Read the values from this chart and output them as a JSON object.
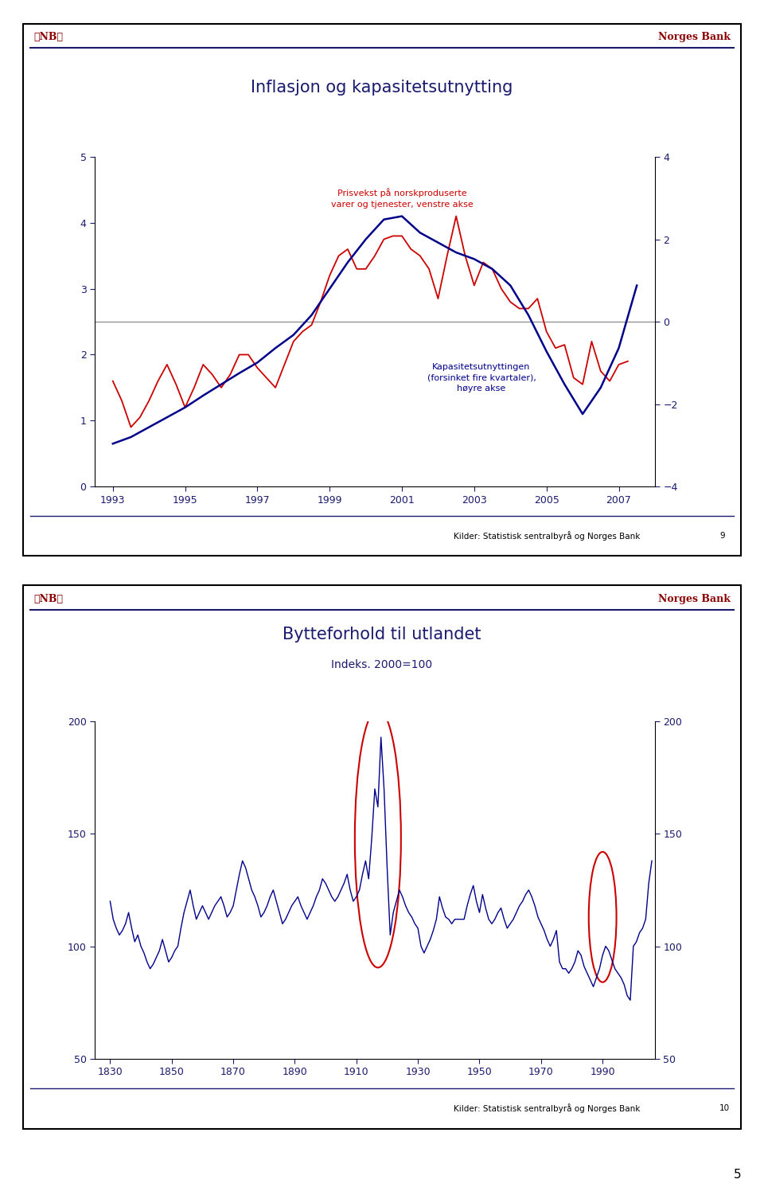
{
  "chart1": {
    "title": "Inflasjon og kapasitetsutnytting",
    "header_left": "❅NB❅",
    "header_right": "Norges Bank",
    "footer": "Kilder: Statistisk sentralbyrå og Norges Bank",
    "footer_num": "9",
    "annotation_red": "Prisvekst på norskproduserte\nvarer og tjenester, venstre akse",
    "annotation_blue": "Kapasitetsutnyttingen\n(forsinket fire kvartaler),\nhøyre akse",
    "left_ylim": [
      0,
      5
    ],
    "left_yticks": [
      0,
      1,
      2,
      3,
      4,
      5
    ],
    "right_ylim": [
      -4,
      4
    ],
    "right_yticks": [
      -4,
      -2,
      0,
      2,
      4
    ],
    "xlim": [
      1992.5,
      2008
    ],
    "xticks": [
      1993,
      1995,
      1997,
      1999,
      2001,
      2003,
      2005,
      2007
    ],
    "blue_color": "#00008B",
    "red_color": "#CC0000",
    "blue_x": [
      1993,
      1993.5,
      1994,
      1994.5,
      1995,
      1995.5,
      1996,
      1996.5,
      1997,
      1997.5,
      1998,
      1998.5,
      1999,
      1999.5,
      2000,
      2000.5,
      2001,
      2001.5,
      2002,
      2002.5,
      2003,
      2003.5,
      2004,
      2004.5,
      2005,
      2005.5,
      2006,
      2006.5,
      2007,
      2007.5
    ],
    "blue_y": [
      0.65,
      0.75,
      0.9,
      1.05,
      1.2,
      1.38,
      1.55,
      1.72,
      1.88,
      2.1,
      2.3,
      2.6,
      3.0,
      3.4,
      3.75,
      4.05,
      4.1,
      3.85,
      3.7,
      3.55,
      3.45,
      3.3,
      3.05,
      2.6,
      2.05,
      1.55,
      1.1,
      1.5,
      2.1,
      3.05
    ],
    "red_x": [
      1993,
      1993.25,
      1993.5,
      1993.75,
      1994,
      1994.25,
      1994.5,
      1994.75,
      1995,
      1995.25,
      1995.5,
      1995.75,
      1996,
      1996.25,
      1996.5,
      1996.75,
      1997,
      1997.25,
      1997.5,
      1997.75,
      1998,
      1998.25,
      1998.5,
      1998.75,
      1999,
      1999.25,
      1999.5,
      1999.75,
      2000,
      2000.25,
      2000.5,
      2000.75,
      2001,
      2001.25,
      2001.5,
      2001.75,
      2002,
      2002.25,
      2002.5,
      2002.75,
      2003,
      2003.25,
      2003.5,
      2003.75,
      2004,
      2004.25,
      2004.5,
      2004.75,
      2005,
      2005.25,
      2005.5,
      2005.75,
      2006,
      2006.25,
      2006.5,
      2006.75,
      2007,
      2007.25
    ],
    "red_y": [
      1.6,
      1.3,
      0.9,
      1.05,
      1.3,
      1.6,
      1.85,
      1.55,
      1.2,
      1.5,
      1.85,
      1.7,
      1.5,
      1.7,
      2.0,
      2.0,
      1.8,
      1.65,
      1.5,
      1.85,
      2.2,
      2.35,
      2.45,
      2.8,
      3.2,
      3.5,
      3.6,
      3.3,
      3.3,
      3.5,
      3.75,
      3.8,
      3.8,
      3.6,
      3.5,
      3.3,
      2.85,
      3.5,
      4.1,
      3.5,
      3.05,
      3.4,
      3.3,
      3.0,
      2.8,
      2.7,
      2.7,
      2.85,
      2.35,
      2.1,
      2.15,
      1.65,
      1.55,
      2.2,
      1.75,
      1.6,
      1.85,
      1.9
    ]
  },
  "chart2": {
    "title": "Bytteforhold til utlandet",
    "subtitle": "Indeks. 2000=100",
    "header_left": "❅NB❅",
    "header_right": "Norges Bank",
    "footer": "Kilder: Statistisk sentralbyrå og Norges Bank",
    "footer_num": "10",
    "ylim": [
      50,
      200
    ],
    "yticks": [
      50,
      100,
      150,
      200
    ],
    "xlim": [
      1825,
      2007
    ],
    "xticks": [
      1830,
      1850,
      1870,
      1890,
      1910,
      1930,
      1950,
      1970,
      1990
    ],
    "line_color": "#00008B",
    "x": [
      1830,
      1831,
      1832,
      1833,
      1834,
      1835,
      1836,
      1837,
      1838,
      1839,
      1840,
      1841,
      1842,
      1843,
      1844,
      1845,
      1846,
      1847,
      1848,
      1849,
      1850,
      1851,
      1852,
      1853,
      1854,
      1855,
      1856,
      1857,
      1858,
      1859,
      1860,
      1861,
      1862,
      1863,
      1864,
      1865,
      1866,
      1867,
      1868,
      1869,
      1870,
      1871,
      1872,
      1873,
      1874,
      1875,
      1876,
      1877,
      1878,
      1879,
      1880,
      1881,
      1882,
      1883,
      1884,
      1885,
      1886,
      1887,
      1888,
      1889,
      1890,
      1891,
      1892,
      1893,
      1894,
      1895,
      1896,
      1897,
      1898,
      1899,
      1900,
      1901,
      1902,
      1903,
      1904,
      1905,
      1906,
      1907,
      1908,
      1909,
      1910,
      1911,
      1912,
      1913,
      1914,
      1915,
      1916,
      1917,
      1918,
      1919,
      1920,
      1921,
      1922,
      1923,
      1924,
      1925,
      1926,
      1927,
      1928,
      1929,
      1930,
      1931,
      1932,
      1933,
      1934,
      1935,
      1936,
      1937,
      1938,
      1939,
      1940,
      1941,
      1942,
      1943,
      1944,
      1945,
      1946,
      1947,
      1948,
      1949,
      1950,
      1951,
      1952,
      1953,
      1954,
      1955,
      1956,
      1957,
      1958,
      1959,
      1960,
      1961,
      1962,
      1963,
      1964,
      1965,
      1966,
      1967,
      1968,
      1969,
      1970,
      1971,
      1972,
      1973,
      1974,
      1975,
      1976,
      1977,
      1978,
      1979,
      1980,
      1981,
      1982,
      1983,
      1984,
      1985,
      1986,
      1987,
      1988,
      1989,
      1990,
      1991,
      1992,
      1993,
      1994,
      1995,
      1996,
      1997,
      1998,
      1999,
      2000,
      2001,
      2002,
      2003,
      2004,
      2005,
      2006
    ],
    "y": [
      120,
      112,
      108,
      105,
      107,
      110,
      115,
      108,
      102,
      105,
      100,
      97,
      93,
      90,
      92,
      95,
      98,
      103,
      98,
      93,
      95,
      98,
      100,
      108,
      115,
      120,
      125,
      118,
      112,
      115,
      118,
      115,
      112,
      115,
      118,
      120,
      122,
      118,
      113,
      115,
      118,
      125,
      132,
      138,
      135,
      130,
      125,
      122,
      118,
      113,
      115,
      118,
      122,
      125,
      120,
      115,
      110,
      112,
      115,
      118,
      120,
      122,
      118,
      115,
      112,
      115,
      118,
      122,
      125,
      130,
      128,
      125,
      122,
      120,
      122,
      125,
      128,
      132,
      125,
      120,
      122,
      125,
      132,
      138,
      130,
      148,
      170,
      162,
      193,
      170,
      135,
      105,
      115,
      120,
      125,
      122,
      118,
      115,
      113,
      110,
      108,
      100,
      97,
      100,
      103,
      107,
      112,
      122,
      117,
      113,
      112,
      110,
      112,
      112,
      112,
      112,
      118,
      123,
      127,
      120,
      115,
      123,
      117,
      112,
      110,
      112,
      115,
      117,
      112,
      108,
      110,
      112,
      115,
      118,
      120,
      123,
      125,
      122,
      118,
      113,
      110,
      107,
      103,
      100,
      103,
      107,
      93,
      90,
      90,
      88,
      90,
      93,
      98,
      96,
      91,
      88,
      85,
      82,
      86,
      90,
      96,
      100,
      98,
      94,
      90,
      88,
      86,
      83,
      78,
      76,
      100,
      102,
      106,
      108,
      112,
      128,
      138
    ]
  },
  "page_number": "5",
  "bg_color": "#FFFFFF",
  "frame_color": "#000000",
  "header_line_color": "#1a1a6e",
  "title_color": "#1a1a6e",
  "tick_color": "#1a1a6e",
  "header_text_color": "#8B0000",
  "footer_line_color": "#1a1a6e"
}
